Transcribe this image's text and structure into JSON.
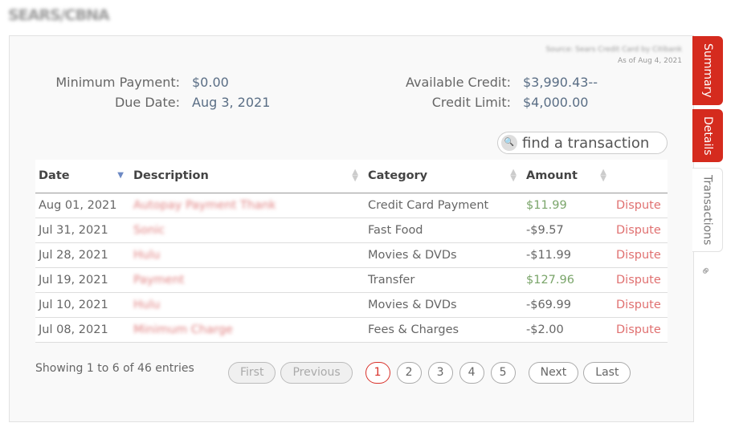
{
  "title": "SEARS/CBNA",
  "source": {
    "text": "Source: Sears Credit Card by Citibank",
    "as_of": "As of Aug 4, 2021"
  },
  "summary": {
    "min_payment_label": "Minimum Payment:",
    "min_payment": "$0.00",
    "due_date_label": "Due Date:",
    "due_date": "Aug 3, 2021",
    "available_label": "Available Credit:",
    "available": "$3,990.43--",
    "limit_label": "Credit Limit:",
    "limit": "$4,000.00"
  },
  "search": {
    "placeholder": "find a transaction"
  },
  "table": {
    "headers": [
      "Date",
      "Description",
      "Category",
      "Amount"
    ],
    "rows": [
      {
        "date": "Aug 01, 2021",
        "desc": "Autopay Payment Thank",
        "cat": "Credit Card Payment",
        "amt": "$11.99",
        "pos": true,
        "action": "Dispute"
      },
      {
        "date": "Jul 31, 2021",
        "desc": "Sonic",
        "cat": "Fast Food",
        "amt": "-$9.57",
        "pos": false,
        "action": "Dispute"
      },
      {
        "date": "Jul 28, 2021",
        "desc": "Hulu",
        "cat": "Movies & DVDs",
        "amt": "-$11.99",
        "pos": false,
        "action": "Dispute"
      },
      {
        "date": "Jul 19, 2021",
        "desc": "Payment",
        "cat": "Transfer",
        "amt": "$127.96",
        "pos": true,
        "action": "Dispute"
      },
      {
        "date": "Jul 10, 2021",
        "desc": "Hulu",
        "cat": "Movies & DVDs",
        "amt": "-$69.99",
        "pos": false,
        "action": "Dispute"
      },
      {
        "date": "Jul 08, 2021",
        "desc": "Minimum Charge",
        "cat": "Fees & Charges",
        "amt": "-$2.00",
        "pos": false,
        "action": "Dispute"
      }
    ]
  },
  "info": "Showing 1 to 6 of 46 entries",
  "pager": {
    "first": "First",
    "previous": "Previous",
    "pages": [
      "1",
      "2",
      "3",
      "4",
      "5"
    ],
    "current": "1",
    "next": "Next",
    "last": "Last"
  },
  "tabs": [
    "Summary",
    "Details",
    "Transactions"
  ],
  "colors": {
    "accent": "#d52b1e",
    "positive": "#7aa56a",
    "dispute": "#e07070"
  }
}
